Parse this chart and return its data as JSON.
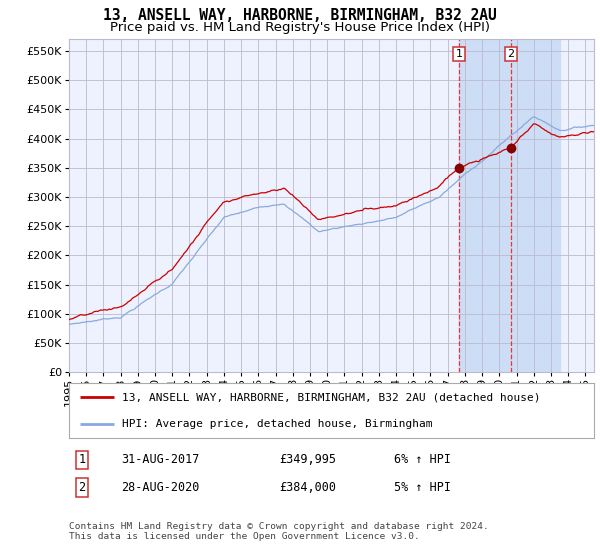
{
  "title": "13, ANSELL WAY, HARBORNE, BIRMINGHAM, B32 2AU",
  "subtitle": "Price paid vs. HM Land Registry's House Price Index (HPI)",
  "legend_line1": "13, ANSELL WAY, HARBORNE, BIRMINGHAM, B32 2AU (detached house)",
  "legend_line2": "HPI: Average price, detached house, Birmingham",
  "annotation1_label": "1",
  "annotation1_date": "31-AUG-2017",
  "annotation1_price": "£349,995",
  "annotation1_hpi": "6% ↑ HPI",
  "annotation2_label": "2",
  "annotation2_date": "28-AUG-2020",
  "annotation2_price": "£384,000",
  "annotation2_hpi": "5% ↑ HPI",
  "footnote": "Contains HM Land Registry data © Crown copyright and database right 2024.\nThis data is licensed under the Open Government Licence v3.0.",
  "xmin": 1995.0,
  "xmax": 2025.5,
  "ymin": 0,
  "ymax": 570000,
  "yticks": [
    0,
    50000,
    100000,
    150000,
    200000,
    250000,
    300000,
    350000,
    400000,
    450000,
    500000,
    550000
  ],
  "sale1_x": 2017.67,
  "sale1_y": 349995,
  "sale2_x": 2020.67,
  "sale2_y": 384000,
  "bg_shade_x1": 2017.67,
  "bg_shade_x2": 2023.5,
  "line_color_property": "#cc0000",
  "line_color_hpi": "#88aadd",
  "marker_color": "#880000",
  "grid_color": "#bbbbcc",
  "bg_color": "#ffffff",
  "plot_bg_color": "#eef2ff",
  "shade_color": "#ccddf5",
  "vline_color": "#ee3333",
  "title_fontsize": 10.5,
  "subtitle_fontsize": 9.5,
  "tick_fontsize": 8,
  "legend_fontsize": 8,
  "ann_fontsize": 8.5,
  "footnote_fontsize": 6.8
}
